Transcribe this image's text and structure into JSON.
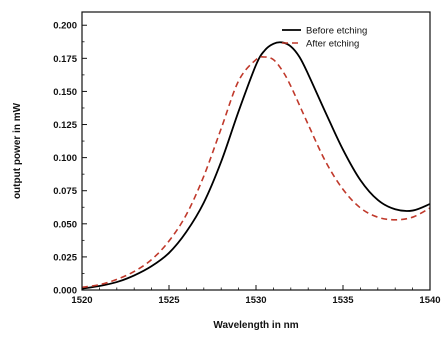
{
  "chart_data": {
    "type": "line",
    "title": "",
    "xlabel": "Wavelength in nm",
    "ylabel": "output power in mW",
    "xlim": [
      1520,
      1540
    ],
    "ylim": [
      0,
      0.21
    ],
    "x_ticks": [
      1520,
      1525,
      1530,
      1535,
      1540
    ],
    "x_tick_labels": [
      "1520",
      "1525",
      "1530",
      "1535",
      "1540"
    ],
    "y_ticks": [
      0,
      0.025,
      0.05,
      0.075,
      0.1,
      0.125,
      0.15,
      0.175,
      0.2
    ],
    "y_tick_labels": [
      "0.000",
      "0.025",
      "0.050",
      "0.075",
      "0.100",
      "0.125",
      "0.150",
      "0.175",
      "0.200"
    ],
    "grid": false,
    "legend_position": "top-right",
    "series": [
      {
        "name": "Before etching",
        "color": "#000000",
        "style": "solid",
        "x": [
          1520,
          1521,
          1522,
          1523,
          1524,
          1525,
          1526,
          1527,
          1528,
          1529,
          1530,
          1530.5,
          1531,
          1531.5,
          1532,
          1532.5,
          1533,
          1534,
          1535,
          1536,
          1537,
          1538,
          1539,
          1540
        ],
        "y": [
          0.001,
          0.003,
          0.006,
          0.011,
          0.018,
          0.028,
          0.044,
          0.066,
          0.097,
          0.135,
          0.17,
          0.181,
          0.186,
          0.187,
          0.184,
          0.176,
          0.163,
          0.134,
          0.106,
          0.083,
          0.068,
          0.061,
          0.06,
          0.065
        ]
      },
      {
        "name": "After etching",
        "color": "#c0392b",
        "style": "dashed",
        "x": [
          1520,
          1521,
          1522,
          1523,
          1524,
          1525,
          1526,
          1527,
          1528,
          1529,
          1530,
          1530.5,
          1531,
          1531.5,
          1532,
          1533,
          1534,
          1535,
          1536,
          1537,
          1538,
          1539,
          1540
        ],
        "y": [
          0.002,
          0.004,
          0.008,
          0.014,
          0.023,
          0.037,
          0.057,
          0.086,
          0.122,
          0.158,
          0.174,
          0.176,
          0.174,
          0.166,
          0.154,
          0.125,
          0.097,
          0.076,
          0.062,
          0.055,
          0.053,
          0.055,
          0.062
        ]
      }
    ]
  }
}
